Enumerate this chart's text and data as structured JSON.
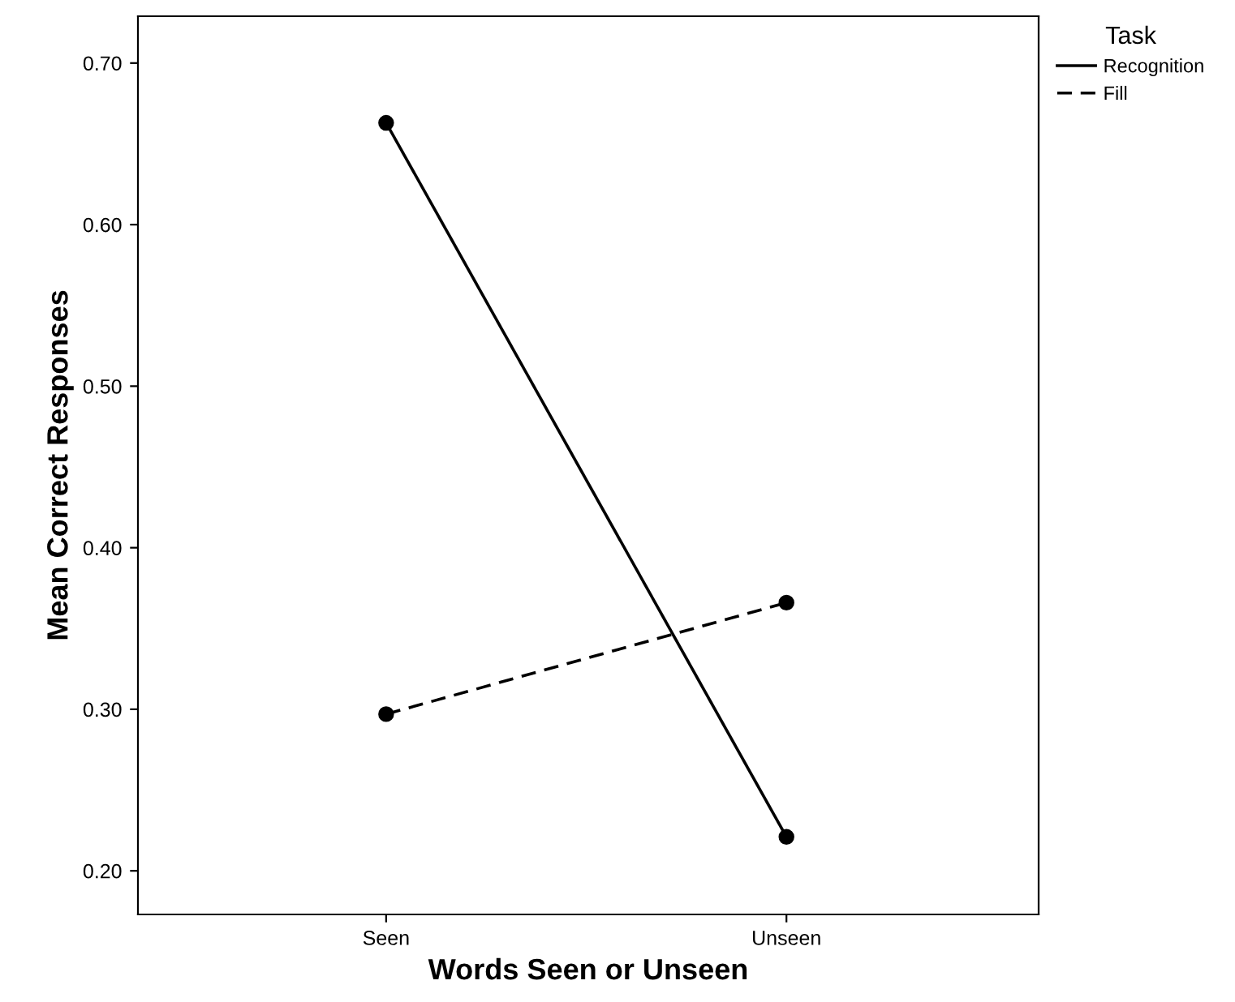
{
  "chart_data": {
    "type": "line",
    "xlabel": "Words Seen or Unseen",
    "ylabel": "Mean Correct Responses",
    "legend_title": "Task",
    "categories": [
      "Seen",
      "Unseen"
    ],
    "series": [
      {
        "name": "Recognition",
        "color": "#000000",
        "values": [
          0.663,
          0.221
        ],
        "line_style": "solid"
      },
      {
        "name": "Fill",
        "color": "#000000",
        "values": [
          0.297,
          0.366
        ],
        "line_style": "dashed"
      }
    ],
    "ylim": [
      0.173,
      0.729
    ],
    "yticks": [
      {
        "value": 0.2,
        "label": "0.20"
      },
      {
        "value": 0.3,
        "label": "0.30"
      },
      {
        "value": 0.4,
        "label": "0.40"
      },
      {
        "value": 0.5,
        "label": "0.50"
      },
      {
        "value": 0.6,
        "label": "0.60"
      },
      {
        "value": 0.7,
        "label": "0.70"
      }
    ],
    "marker": "circle",
    "grid": false,
    "legend": "top right"
  }
}
